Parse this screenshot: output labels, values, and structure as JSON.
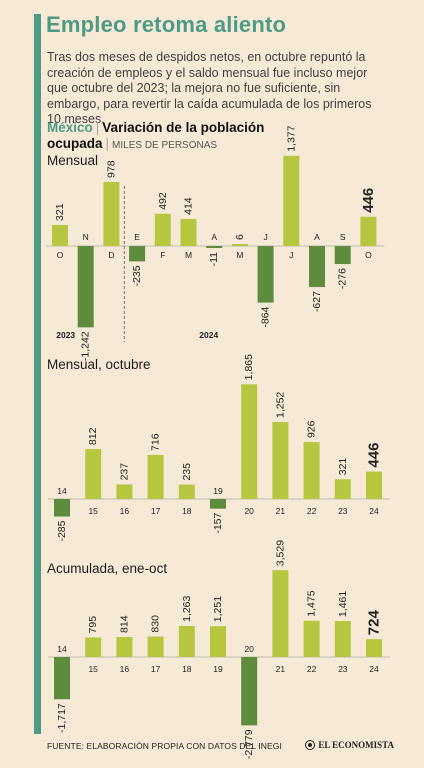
{
  "title": "Empleo retoma aliento",
  "intro": "Tras dos meses de despidos netos, en octubre repuntó la creación de empleos y el saldo mensual fue incluso mejor que octubre del 2023; la mejora no fue suficiente, sin embargo, para revertir la caída acumulada de los primeros 10 meses.",
  "header": {
    "country": "México",
    "separator": "|",
    "metric_line1": "Variación de la población",
    "metric_line2": "ocupada",
    "unit": "MILES DE PERSONAS"
  },
  "footer": {
    "source": "FUENTE: ELABORACIÓN PROPIA CON DATOS DEL INEGI",
    "brand": "EL ECONOMISTA"
  },
  "colors": {
    "positive": "#b6c63f",
    "negative": "#5d8c3c",
    "accent": "#4d9a86",
    "background": "#f6ead7"
  },
  "chart_data": [
    {
      "type": "bar",
      "title": "Mensual",
      "categories": [
        "O",
        "N",
        "D",
        "E",
        "F",
        "M",
        "A",
        "M",
        "J",
        "J",
        "A",
        "S",
        "O"
      ],
      "values": [
        321,
        -1242,
        978,
        -235,
        492,
        414,
        -11,
        6,
        -864,
        1377,
        -627,
        -276,
        446
      ],
      "labels": [
        "321",
        "-1,242",
        "978",
        "-235",
        "492",
        "414",
        "-11",
        "6",
        "-864",
        "1,377",
        "-627",
        "-276",
        "446"
      ],
      "years": [
        {
          "label": "2023",
          "from": 0,
          "to": 2
        },
        {
          "label": "2024",
          "from": 3,
          "to": 12
        }
      ],
      "highlight_last": true
    },
    {
      "type": "bar",
      "title": "Mensual, octubre",
      "categories": [
        "14",
        "15",
        "16",
        "17",
        "18",
        "19",
        "20",
        "21",
        "22",
        "23",
        "24"
      ],
      "values": [
        -285,
        812,
        237,
        716,
        235,
        -157,
        1865,
        1252,
        926,
        321,
        446
      ],
      "labels": [
        "-285",
        "812",
        "237",
        "716",
        "235",
        "-157",
        "1,865",
        "1,252",
        "926",
        "321",
        "446"
      ],
      "highlight_last": true
    },
    {
      "type": "bar",
      "title": "Acumulada, ene-oct",
      "categories": [
        "14",
        "15",
        "16",
        "17",
        "18",
        "19",
        "20",
        "21",
        "22",
        "23",
        "24"
      ],
      "values": [
        -1717,
        795,
        814,
        830,
        1263,
        1251,
        -2779,
        3529,
        1475,
        1461,
        724
      ],
      "labels": [
        "-1,717",
        "795",
        "814",
        "830",
        "1,263",
        "1,251",
        "-2,779",
        "3,529",
        "1,475",
        "1,461",
        "724"
      ],
      "highlight_last": true
    }
  ]
}
